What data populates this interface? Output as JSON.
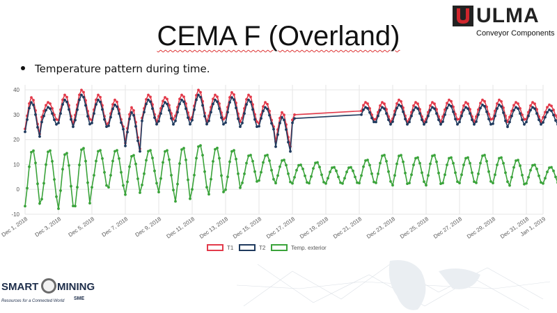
{
  "slide": {
    "title": "CEMA F (Overland)",
    "bullet": "Temperature pattern during time."
  },
  "logos": {
    "ulma_name": "ULMA",
    "ulma_sub": "Conveyor Components",
    "smart_word1": "SMART",
    "smart_word2": "MINING",
    "smart_tagline": "Resources for a Connected World",
    "sme_mark": "SME"
  },
  "colors": {
    "t1": "#e23a4a",
    "t2": "#1f3a5e",
    "exterior": "#3aa33a",
    "grid": "#e6e6e6"
  },
  "chart_data": {
    "type": "line",
    "x_unit": "days since Dec 1, 2018",
    "xlim": [
      "Dec 1, 2018",
      "Jan 1, 2019"
    ],
    "ylim": [
      -10,
      42
    ],
    "yticks": [
      -10,
      0,
      10,
      20,
      30,
      40
    ],
    "x_tick_labels": [
      "Dec 1, 2018",
      "Dec 3, 2018",
      "Dec 5, 2018",
      "Dec 7, 2018",
      "Dec 9, 2018",
      "Dec 11, 2018",
      "Dec 13, 2018",
      "Dec 15, 2018",
      "Dec 17, 2018",
      "Dec 19, 2018",
      "Dec 21, 2018",
      "Dec 23, 2018",
      "Dec 25, 2018",
      "Dec 27, 2018",
      "Dec 29, 2018",
      "Dec 31, 2018",
      "Jan 1, 2019"
    ],
    "x_tick_positions": [
      0,
      2,
      4,
      6,
      8,
      10,
      12,
      14,
      16,
      18,
      20,
      22,
      24,
      26,
      28,
      30,
      31
    ],
    "legend_position": "bottom",
    "grid": true,
    "series": [
      {
        "name": "T1",
        "color": "#e23a4a",
        "daily_min": [
          22,
          28,
          26,
          28,
          26,
          25,
          16,
          27,
          28,
          28,
          27,
          28,
          27,
          27,
          25,
          17,
          27,
          26,
          28,
          28,
          28,
          27,
          27,
          27,
          27,
          28,
          27,
          28,
          27,
          28,
          27,
          28
        ],
        "daily_max": [
          37,
          35,
          38,
          40,
          38,
          36,
          33,
          38,
          37,
          38,
          40,
          38,
          39,
          38,
          35,
          31,
          33,
          null,
          null,
          null,
          35,
          35,
          36,
          35,
          35,
          36,
          35,
          36,
          36,
          35,
          35,
          34
        ],
        "gap": [
          16.2,
          20.1
        ]
      },
      {
        "name": "T2",
        "color": "#1f3a5e",
        "daily_min": [
          21,
          26,
          25,
          26,
          25,
          24,
          15,
          26,
          26,
          26,
          26,
          26,
          25,
          25,
          24,
          15,
          26,
          25,
          27,
          27,
          27,
          26,
          26,
          26,
          26,
          26,
          26,
          26,
          25,
          26,
          26,
          26
        ],
        "daily_max": [
          35,
          33,
          36,
          38,
          36,
          34,
          31,
          36,
          35,
          36,
          38,
          36,
          37,
          36,
          33,
          29,
          31,
          null,
          null,
          null,
          33,
          33,
          34,
          33,
          33,
          34,
          33,
          34,
          34,
          33,
          33,
          32
        ],
        "gap": [
          16.2,
          20.1
        ]
      },
      {
        "name": "Temp. exterior",
        "color": "#3aa33a",
        "daily_min": [
          -8,
          -5,
          -9,
          -8,
          0,
          0,
          -3,
          1,
          -2,
          -6,
          -1,
          -3,
          -1,
          2,
          3,
          2,
          2,
          2,
          2,
          2,
          2,
          2,
          1,
          2,
          1,
          2,
          2,
          2,
          2,
          1,
          2,
          2
        ],
        "daily_max": [
          16,
          16,
          15,
          17,
          16,
          16,
          14,
          16,
          16,
          17,
          18,
          17,
          16,
          14,
          14,
          12,
          10,
          11,
          9,
          9,
          12,
          14,
          14,
          13,
          14,
          13,
          13,
          14,
          13,
          12,
          10,
          9
        ]
      }
    ]
  }
}
